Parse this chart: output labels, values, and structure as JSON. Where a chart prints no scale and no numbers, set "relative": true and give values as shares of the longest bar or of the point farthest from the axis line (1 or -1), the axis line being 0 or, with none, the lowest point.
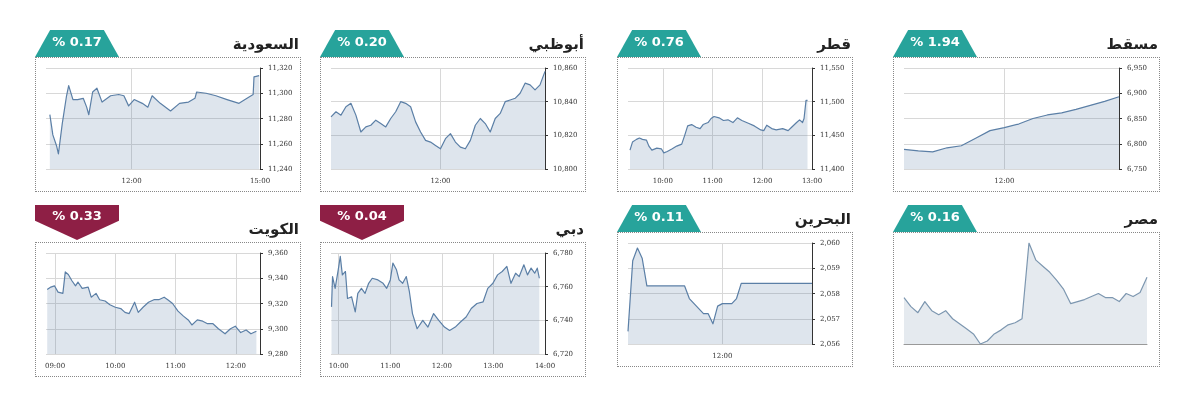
{
  "chart_data": [
    {
      "type": "area",
      "title": "مسقط",
      "annotations": [
        "% 1.94"
      ],
      "color": "#5b7fa6",
      "grid": true,
      "categories": [
        null,
        null,
        null,
        null,
        null,
        null,
        null,
        "12:00",
        null,
        null,
        null,
        null,
        null,
        null,
        null,
        null
      ],
      "values": [
        6789,
        6786,
        6784,
        6792,
        6796,
        6811,
        6826,
        6832,
        6839,
        6850,
        6857,
        6861,
        6868,
        6876,
        6884,
        6893
      ],
      "ylim": [
        6750,
        6950
      ],
      "yticks": [
        {
          "value": 6750,
          "label": "6,750"
        },
        {
          "value": 6800,
          "label": "6,800"
        },
        {
          "value": 6850,
          "label": "6,850"
        },
        {
          "value": 6900,
          "label": "6,900"
        },
        {
          "value": 6950,
          "label": "6,950"
        }
      ]
    },
    {
      "type": "area",
      "title": "قطر",
      "annotations": [
        "% 0.76"
      ],
      "color": "#5b7fa6",
      "grid": true,
      "x": [
        9.34,
        9.39,
        9.47,
        9.53,
        9.59,
        9.67,
        9.72,
        9.78,
        9.88,
        9.97,
        10.02,
        10.09,
        10.19,
        10.28,
        10.38,
        10.44,
        10.5,
        10.58,
        10.67,
        10.75,
        10.81,
        10.91,
        10.97,
        11.03,
        11.13,
        11.22,
        11.31,
        11.41,
        11.5,
        11.59,
        11.72,
        11.84,
        11.97,
        12.03,
        12.09,
        12.19,
        12.28,
        12.41,
        12.52,
        12.59,
        12.69,
        12.75,
        12.81,
        12.84,
        12.88,
        12.91
      ],
      "values": [
        11428,
        11440,
        11444,
        11446,
        11444,
        11443,
        11434,
        11428,
        11431,
        11430,
        11424,
        11426,
        11430,
        11434,
        11437,
        11450,
        11464,
        11466,
        11462,
        11460,
        11466,
        11469,
        11475,
        11478,
        11476,
        11472,
        11473,
        11469,
        11476,
        11472,
        11468,
        11464,
        11458,
        11457,
        11465,
        11460,
        11458,
        11460,
        11457,
        11462,
        11469,
        11473,
        11469,
        11475,
        11502,
        11502
      ],
      "xlim": [
        9.3,
        13
      ],
      "xticks": [
        {
          "value": 10,
          "label": "10:00"
        },
        {
          "value": 11,
          "label": "11:00"
        },
        {
          "value": 12,
          "label": "12:00"
        },
        {
          "value": 13,
          "label": "13:00"
        }
      ],
      "ylim": [
        11400,
        11550
      ],
      "yticks": [
        {
          "value": 11400,
          "label": "11,400"
        },
        {
          "value": 11450,
          "label": "11,450"
        },
        {
          "value": 11500,
          "label": "11,500"
        },
        {
          "value": 11550,
          "label": "11,550"
        }
      ]
    },
    {
      "type": "area",
      "title": "أبوظبي",
      "annotations": [
        "% 0.20"
      ],
      "color": "#5b7fa6",
      "grid": true,
      "categories": [
        null,
        null,
        null,
        null,
        null,
        null,
        null,
        null,
        null,
        null,
        null,
        null,
        null,
        null,
        null,
        null,
        null,
        null,
        null,
        null,
        null,
        null,
        "12:00",
        null,
        null,
        null,
        null,
        null,
        null,
        null,
        null,
        null,
        null,
        null,
        null,
        null,
        null,
        null,
        null,
        null,
        null,
        null,
        null,
        null
      ],
      "values": [
        10831,
        10834,
        10832,
        10837,
        10839,
        10832,
        10822,
        10825,
        10826,
        10829,
        10827,
        10825,
        10830,
        10834,
        10840,
        10839,
        10837,
        10828,
        10822,
        10817,
        10816,
        10814,
        10812,
        10818,
        10821,
        10816,
        10813,
        10812,
        10817,
        10826,
        10830,
        10827,
        10822,
        10830,
        10833,
        10840,
        10841,
        10842,
        10845,
        10851,
        10850,
        10847,
        10850,
        10858
      ],
      "ylim": [
        10800,
        10860
      ],
      "yticks": [
        {
          "value": 10800,
          "label": "10,800"
        },
        {
          "value": 10820,
          "label": "10,820"
        },
        {
          "value": 10840,
          "label": "10,840"
        },
        {
          "value": 10860,
          "label": "10,860"
        }
      ]
    },
    {
      "type": "area",
      "title": "السعودية",
      "annotations": [
        "% 0.17"
      ],
      "color": "#5b7fa6",
      "grid": true,
      "x": [
        10.09,
        10.16,
        10.25,
        10.29,
        10.38,
        10.48,
        10.53,
        10.63,
        10.74,
        10.87,
        10.95,
        11.0,
        11.09,
        11.19,
        11.31,
        11.51,
        11.7,
        11.82,
        11.93,
        12.06,
        12.25,
        12.38,
        12.48,
        12.67,
        12.91,
        13.12,
        13.33,
        13.48,
        13.52,
        13.74,
        13.97,
        14.23,
        14.51,
        14.65,
        14.84,
        14.86,
        14.98
      ],
      "values": [
        11283,
        11267,
        11258,
        11252,
        11276,
        11298,
        11306,
        11295,
        11295,
        11296,
        11289,
        11283,
        11301,
        11304,
        11293,
        11298,
        11299,
        11298,
        11290,
        11295,
        11292,
        11289,
        11298,
        11292,
        11286,
        11292,
        11293,
        11296,
        11301,
        11300,
        11298,
        11295,
        11292,
        11295,
        11299,
        11313,
        11314
      ],
      "xlim": [
        10,
        15
      ],
      "xticks": [
        {
          "value": 12,
          "label": "12:00"
        },
        {
          "value": 15,
          "label": "15:00"
        }
      ],
      "ylim": [
        11240,
        11320
      ],
      "yticks": [
        {
          "value": 11240,
          "label": "11,240"
        },
        {
          "value": 11260,
          "label": "11,260"
        },
        {
          "value": 11280,
          "label": "11,280"
        },
        {
          "value": 11300,
          "label": "11,300"
        },
        {
          "value": 11320,
          "label": "11,320"
        }
      ]
    },
    {
      "type": "area",
      "title": "مصر",
      "annotations": [
        "% 0.16"
      ],
      "color": "#7d97b0",
      "relative": true,
      "categories": [
        null,
        null,
        null,
        null,
        null,
        null,
        null,
        null,
        null,
        null,
        null,
        null,
        null,
        null,
        null,
        null,
        null,
        null,
        null,
        null,
        null,
        null,
        null,
        null,
        null,
        null,
        null,
        null,
        null,
        null,
        null,
        null,
        null,
        null,
        null,
        null
      ],
      "values": [
        0.46,
        0.37,
        0.31,
        0.42,
        0.33,
        0.29,
        0.33,
        0.25,
        0.2,
        0.15,
        0.1,
        0,
        0.03,
        0.1,
        0.14,
        0.19,
        0.21,
        0.25,
        1.0,
        0.83,
        0.77,
        0.71,
        0.63,
        0.54,
        0.4,
        0.42,
        0.44,
        0.47,
        0.5,
        0.46,
        0.46,
        0.42,
        0.5,
        0.47,
        0.51,
        0.66
      ]
    },
    {
      "type": "area",
      "title": "البحرين",
      "annotations": [
        "% 0.11"
      ],
      "color": "#5b7fa6",
      "grid": true,
      "categories": [
        null,
        null,
        null,
        null,
        null,
        null,
        null,
        null,
        null,
        null,
        null,
        null,
        null,
        null,
        null,
        null,
        null,
        null,
        null,
        null,
        "12:00",
        null,
        null,
        null,
        null,
        null,
        null,
        null,
        null,
        null,
        null,
        null,
        null,
        null,
        null,
        null,
        null,
        null,
        null,
        null
      ],
      "values": [
        2056.5,
        2059.3,
        2059.8,
        2059.4,
        2058.3,
        2058.3,
        2058.3,
        2058.3,
        2058.3,
        2058.3,
        2058.3,
        2058.3,
        2058.3,
        2057.8,
        2057.6,
        2057.4,
        2057.2,
        2057.2,
        2056.8,
        2057.5,
        2057.6,
        2057.6,
        2057.6,
        2057.8,
        2058.4,
        2058.4,
        2058.4,
        2058.4,
        2058.4,
        2058.4,
        2058.4,
        2058.4,
        2058.4,
        2058.4,
        2058.4,
        2058.4,
        2058.4,
        2058.4,
        2058.4,
        2058.4
      ],
      "ylim": [
        2056,
        2060
      ],
      "yticks": [
        {
          "value": 2056,
          "label": "2,056"
        },
        {
          "value": 2057,
          "label": "2,057"
        },
        {
          "value": 2058,
          "label": "2,058"
        },
        {
          "value": 2059,
          "label": "2,059"
        },
        {
          "value": 2060,
          "label": "2,060"
        }
      ]
    },
    {
      "type": "area",
      "title": "دبي",
      "annotations": [
        "% 0.04"
      ],
      "color": "#5b7fa6",
      "grid": true,
      "x": [
        9.86,
        9.88,
        9.93,
        9.99,
        10.03,
        10.07,
        10.13,
        10.17,
        10.25,
        10.32,
        10.37,
        10.44,
        10.51,
        10.58,
        10.65,
        10.76,
        10.86,
        10.93,
        11.0,
        11.05,
        11.12,
        11.17,
        11.24,
        11.31,
        11.37,
        11.43,
        11.52,
        11.63,
        11.73,
        11.84,
        11.94,
        12.05,
        12.15,
        12.26,
        12.36,
        12.47,
        12.57,
        12.68,
        12.8,
        12.89,
        12.99,
        13.08,
        13.17,
        13.26,
        13.34,
        13.43,
        13.5,
        13.59,
        13.66,
        13.73,
        13.8,
        13.85,
        13.89
      ],
      "values": [
        6748,
        6766,
        6759,
        6770,
        6778,
        6767,
        6769,
        6753,
        6754,
        6745,
        6756,
        6759,
        6756,
        6762,
        6765,
        6764,
        6762,
        6759,
        6764,
        6774,
        6770,
        6764,
        6762,
        6766,
        6757,
        6744,
        6735,
        6740,
        6736,
        6744,
        6740,
        6736,
        6734,
        6736,
        6739,
        6742,
        6747,
        6750,
        6751,
        6759,
        6762,
        6767,
        6769,
        6772,
        6762,
        6768,
        6766,
        6773,
        6767,
        6771,
        6768,
        6771,
        6765
      ],
      "xlim": [
        9.85,
        14
      ],
      "xticks": [
        {
          "value": 10,
          "label": "10:00"
        },
        {
          "value": 11,
          "label": "11:00"
        },
        {
          "value": 12,
          "label": "12:00"
        },
        {
          "value": 13,
          "label": "13:00"
        },
        {
          "value": 14,
          "label": "14:00"
        }
      ],
      "ylim": [
        6720,
        6780
      ],
      "yticks": [
        {
          "value": 6720,
          "label": "6,720"
        },
        {
          "value": 6740,
          "label": "6,740"
        },
        {
          "value": 6760,
          "label": "6,760"
        },
        {
          "value": 6780,
          "label": "6,780"
        }
      ]
    },
    {
      "type": "area",
      "title": "الكويت",
      "annotations": [
        "% 0.33"
      ],
      "color": "#5b7fa6",
      "grid": true,
      "x": [
        8.87,
        8.93,
        8.99,
        9.05,
        9.13,
        9.17,
        9.22,
        9.28,
        9.34,
        9.38,
        9.45,
        9.55,
        9.6,
        9.68,
        9.74,
        9.83,
        9.91,
        10.0,
        10.09,
        10.16,
        10.23,
        10.32,
        10.38,
        10.46,
        10.55,
        10.64,
        10.72,
        10.81,
        10.87,
        10.95,
        11.04,
        11.13,
        11.21,
        11.27,
        11.36,
        11.45,
        11.53,
        11.62,
        11.71,
        11.82,
        11.91,
        11.99,
        12.08,
        12.17,
        12.25,
        12.34
      ],
      "values": [
        9331,
        9333,
        9334,
        9329,
        9328,
        9345,
        9343,
        9338,
        9334,
        9337,
        9332,
        9333,
        9325,
        9328,
        9323,
        9322,
        9319,
        9317,
        9316,
        9313,
        9312,
        9321,
        9313,
        9317,
        9321,
        9323,
        9323,
        9325,
        9323,
        9320,
        9314,
        9310,
        9307,
        9303,
        9307,
        9306,
        9304,
        9304,
        9300,
        9296,
        9300,
        9302,
        9297,
        9299,
        9296,
        9298
      ],
      "xlim": [
        8.85,
        12.4
      ],
      "xticks": [
        {
          "value": 9,
          "label": "09:00"
        },
        {
          "value": 10,
          "label": "10:00"
        },
        {
          "value": 11,
          "label": "11:00"
        },
        {
          "value": 12,
          "label": "12:00"
        }
      ],
      "ylim": [
        9280,
        9360
      ],
      "yticks": [
        {
          "value": 9280,
          "label": "9,280"
        },
        {
          "value": 9300,
          "label": "9,300"
        },
        {
          "value": 9320,
          "label": "9,320"
        },
        {
          "value": 9340,
          "label": "9,340"
        },
        {
          "value": 9360,
          "label": "9,360"
        }
      ]
    }
  ]
}
